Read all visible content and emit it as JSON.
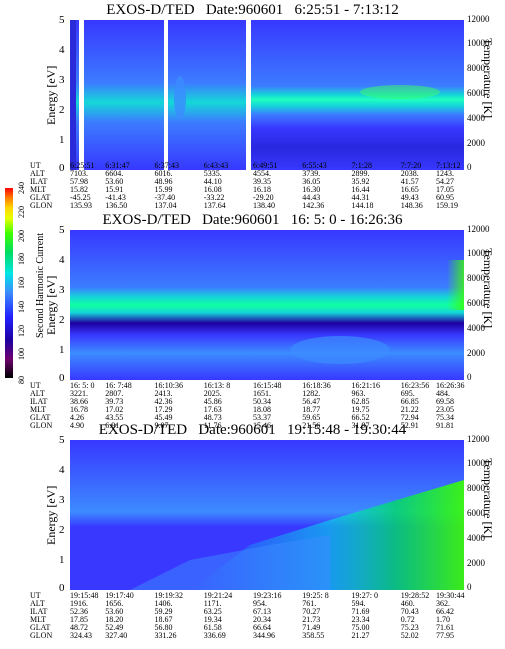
{
  "panels": [
    {
      "title": "EXOS-D/TED   Date:960601   6:25:51 - 7:13:12",
      "ylabel": "Energy [eV]",
      "y2label": "Temperature [K]",
      "yticks": [
        "0",
        "1",
        "2",
        "3",
        "4",
        "5"
      ],
      "y2ticks": [
        "0",
        "2000",
        "4000",
        "6000",
        "8000",
        "10000",
        "12000"
      ],
      "rows": [
        "UT",
        "ALT",
        "ILAT",
        "MLT",
        "GLAT",
        "GLON"
      ],
      "table": [
        [
          "6:25:51",
          "7103.",
          "57.98",
          "15.82",
          "-45.25",
          "135.93"
        ],
        [
          "6:31:47",
          "6604.",
          "53.60",
          "15.91",
          "-41.43",
          "136.50"
        ],
        [
          "6:37:43",
          "6016.",
          "48.96",
          "15.99",
          "-37.40",
          "137.04"
        ],
        [
          "6:43:43",
          "5335.",
          "44.10",
          "16.08",
          "-33.22",
          "137.64"
        ],
        [
          "6:49:51",
          "4554.",
          "39.35",
          "16.18",
          "-29.20",
          "138.40"
        ],
        [
          "6:55:43",
          "3739.",
          "36.05",
          "16.30",
          "44.43",
          "142.36"
        ],
        [
          "7:1:28",
          "2899.",
          "35.92",
          "16.44",
          "44.31",
          "144.18"
        ],
        [
          "7:7:20",
          "2038.",
          "41.57",
          "16.65",
          "49.43",
          "148.36"
        ],
        [
          "7:13:12",
          "1243.",
          "54.27",
          "17.05",
          "60.95",
          "159.19"
        ]
      ]
    },
    {
      "title": "EXOS-D/TED   Date:960601   16: 5: 0 - 16:26:36",
      "ylabel": "Energy [eV]",
      "y2label": "Temperature [K]",
      "yticks": [
        "0",
        "1",
        "2",
        "3",
        "4",
        "5"
      ],
      "y2ticks": [
        "0",
        "2000",
        "4000",
        "6000",
        "8000",
        "10000",
        "12000"
      ],
      "rows": [
        "UT",
        "ALT",
        "ILAT",
        "MLT",
        "GLAT",
        "GLON"
      ],
      "table": [
        [
          "16: 5: 0",
          "3221.",
          "38.66",
          "16.78",
          "4.26",
          "4.90"
        ],
        [
          "16: 7:48",
          "2807.",
          "39.73",
          "17.02",
          "43.55",
          "6.91"
        ],
        [
          "16:10:36",
          "2413.",
          "42.36",
          "17.29",
          "45.49",
          "9.07"
        ],
        [
          "16:13: 8",
          "2025.",
          "45.86",
          "17.63",
          "48.73",
          "11.76"
        ],
        [
          "16:15:48",
          "1651.",
          "50.34",
          "18.08",
          "53.37",
          "15.46"
        ],
        [
          "16:18:36",
          "1282.",
          "56.47",
          "18.77",
          "59.65",
          "21.56"
        ],
        [
          "16:21:16",
          "963.",
          "62.85",
          "19.75",
          "66.52",
          "31.97"
        ],
        [
          "16:23:56",
          "695.",
          "66.85",
          "21.22",
          "72.94",
          "52.91"
        ],
        [
          "16:26:36",
          "484.",
          "69.58",
          "23.05",
          "75.34",
          "91.81"
        ]
      ]
    },
    {
      "title": "EXOS-D/TED   Date:960601   19:15:48 - 19:30:44",
      "ylabel": "Energy [eV]",
      "y2label": "Temperature [K]",
      "yticks": [
        "0",
        "1",
        "2",
        "3",
        "4",
        "5"
      ],
      "y2ticks": [
        "0",
        "2000",
        "4000",
        "6000",
        "8000",
        "10000",
        "12000"
      ],
      "rows": [
        "UT",
        "ALT",
        "ILAT",
        "MLT",
        "GLAT",
        "GLON"
      ],
      "table": [
        [
          "19:15:48",
          "1916.",
          "52.36",
          "17.85",
          "48.72",
          "324.43"
        ],
        [
          "19:17:40",
          "1656.",
          "53.60",
          "18.20",
          "52.49",
          "327.40"
        ],
        [
          "19:19:32",
          "1406.",
          "59.29",
          "18.67",
          "56.80",
          "331.26"
        ],
        [
          "19:21:24",
          "1171.",
          "63.25",
          "19.34",
          "61.58",
          "336.69"
        ],
        [
          "19:23:16",
          "954.",
          "67.13",
          "20.34",
          "66.64",
          "344.96"
        ],
        [
          "19:25: 8",
          "761.",
          "70.27",
          "21.73",
          "71.49",
          "358.55"
        ],
        [
          "19:27: 0",
          "594.",
          "71.69",
          "23.34",
          "75.00",
          "21.27"
        ],
        [
          "19:28:52",
          "460.",
          "70.43",
          "0.72",
          "75.23",
          "52.02"
        ],
        [
          "19:30:44",
          "362.",
          "66.42",
          "1.70",
          "71.61",
          "77.95"
        ]
      ]
    }
  ],
  "colorbar": {
    "label": "Second Harmonic Current",
    "ticks": [
      "80",
      "100",
      "120",
      "140",
      "160",
      "180",
      "200",
      "220",
      "240"
    ],
    "colors": [
      "#000000",
      "#6e006e",
      "#1e00a0",
      "#2020ff",
      "#3c8cff",
      "#00e6e6",
      "#00dc64",
      "#3cff00",
      "#e6ff00",
      "#ffd200",
      "#ff7800",
      "#ff0000"
    ]
  },
  "chart_data": [
    {
      "type": "heatmap",
      "title": "EXOS-D/TED   Date:960601   6:25:51 - 7:13:12",
      "xlabel": "UT",
      "ylabel": "Energy [eV]",
      "y2label": "Temperature [K]",
      "ylim": [
        0,
        5
      ],
      "y2lim": [
        0,
        12000
      ],
      "x": [
        "6:25:51",
        "6:31:47",
        "6:37:43",
        "6:43:43",
        "6:49:51",
        "6:55:43",
        "7:1:28",
        "7:7:20",
        "7:13:12"
      ],
      "ridge_energy_eV": [
        2.4,
        2.5,
        2.6,
        2.3,
        2.4,
        2.3,
        2.3,
        2.4,
        2.5
      ]
    },
    {
      "type": "heatmap",
      "title": "EXOS-D/TED   Date:960601   16: 5: 0 - 16:26:36",
      "xlabel": "UT",
      "ylabel": "Energy [eV]",
      "y2label": "Temperature [K]",
      "ylim": [
        0,
        5
      ],
      "y2lim": [
        0,
        12000
      ],
      "x": [
        "16: 5: 0",
        "16: 7:48",
        "16:10:36",
        "16:13: 8",
        "16:15:48",
        "16:18:36",
        "16:21:16",
        "16:23:56",
        "16:26:36"
      ],
      "ridge_energy_eV": [
        2.2,
        2.4,
        2.4,
        2.3,
        2.3,
        2.2,
        2.3,
        2.6,
        2.8
      ]
    },
    {
      "type": "heatmap",
      "title": "EXOS-D/TED   Date:960601   19:15:48 - 19:30:44",
      "xlabel": "UT",
      "ylabel": "Energy [eV]",
      "y2label": "Temperature [K]",
      "ylim": [
        0,
        5
      ],
      "y2lim": [
        0,
        12000
      ],
      "x": [
        "19:15:48",
        "19:17:40",
        "19:19:32",
        "19:21:24",
        "19:23:16",
        "19:25: 8",
        "19:27: 0",
        "19:28:52",
        "19:30:44"
      ],
      "ridge_energy_eV": [
        2.6,
        2.6,
        2.5,
        2.5,
        2.6,
        2.8,
        3.0,
        3.3,
        3.5
      ]
    }
  ]
}
